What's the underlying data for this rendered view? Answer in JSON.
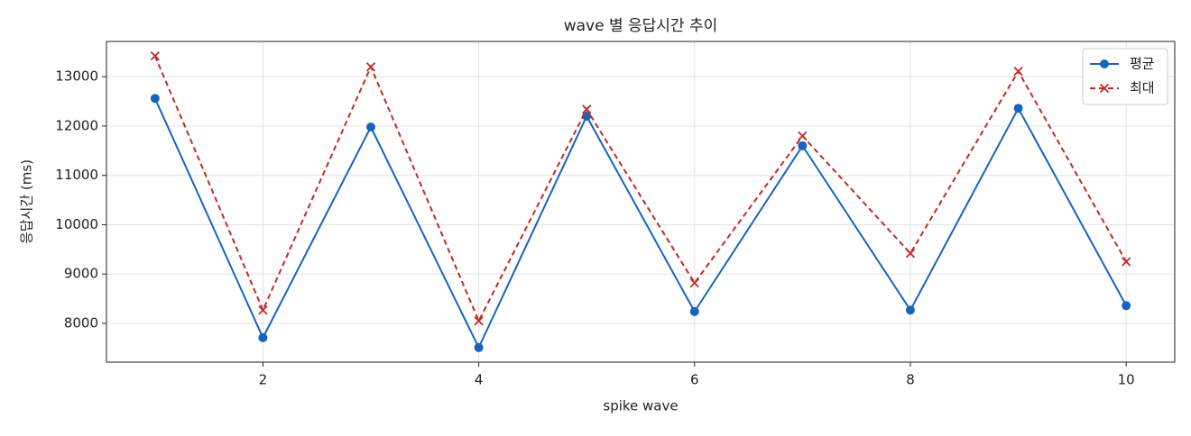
{
  "chart_data": {
    "type": "line",
    "title": "wave 별 응답시간 추이",
    "x_label": "spike wave",
    "y_label": "응답시간 (ms)",
    "x": [
      1,
      2,
      3,
      4,
      5,
      6,
      7,
      8,
      9,
      10
    ],
    "series": [
      {
        "name": "평균",
        "color": "#1565c0",
        "marker": "circle",
        "dash": false,
        "values": [
          12560,
          7710,
          11980,
          7510,
          12200,
          8240,
          11600,
          8270,
          12360,
          8360
        ]
      },
      {
        "name": "최대",
        "color": "#c62828",
        "marker": "x",
        "dash": true,
        "values": [
          13420,
          8270,
          13200,
          8050,
          12340,
          8820,
          11800,
          9420,
          13110,
          9250
        ]
      }
    ],
    "xlim": [
      0.55,
      10.45
    ],
    "xticks": [
      2,
      4,
      6,
      8,
      10
    ],
    "ylim": [
      7215,
      13715
    ],
    "yticks": [
      8000,
      9000,
      10000,
      11000,
      12000,
      13000
    ],
    "grid": true,
    "legend": "upper right"
  }
}
